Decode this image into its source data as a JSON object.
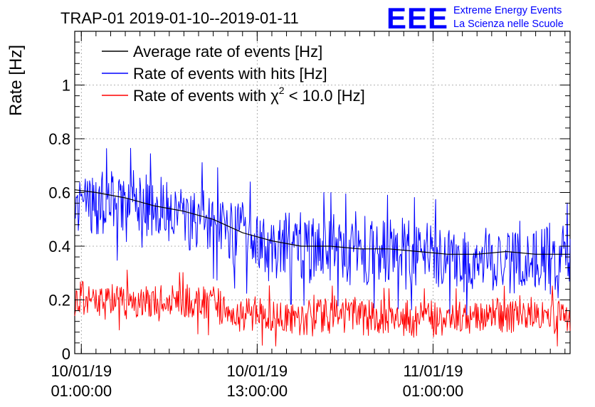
{
  "logo": {
    "mark": "EEE",
    "line1": "Extreme Energy Events",
    "line2": "La Scienza nelle Scuole",
    "color": "#0000ff"
  },
  "chart_data": {
    "type": "line",
    "title": "TRAP-01 2019-01-10--2019-01-11",
    "xlabel": "",
    "ylabel": "Rate [Hz]",
    "x_unit": "hours since 2019-01-10 00:00",
    "xlim": [
      0.55,
      34.35
    ],
    "ylim": [
      0,
      1.2
    ],
    "y_ticks": [
      0,
      0.2,
      0.4,
      0.6,
      0.8,
      1
    ],
    "y_tick_labels": [
      "0",
      "0.2",
      "0.4",
      "0.6",
      "0.8",
      "1"
    ],
    "x_ticks": [
      1,
      13,
      25
    ],
    "x_tick_labels": [
      [
        "10/01/19",
        "01:00:00"
      ],
      [
        "10/01/19",
        "13:00:00"
      ],
      [
        "11/01/19",
        "01:00:00"
      ]
    ],
    "grid": true,
    "legend_position": "top-left",
    "series": [
      {
        "name": "Average rate of events [Hz]",
        "color": "#000000",
        "x": [
          0.55,
          2,
          4,
          6,
          8,
          10,
          12,
          14,
          16,
          18,
          20,
          22,
          24,
          26,
          28,
          30,
          32,
          34.35
        ],
        "values": [
          0.61,
          0.6,
          0.58,
          0.55,
          0.53,
          0.5,
          0.45,
          0.42,
          0.4,
          0.4,
          0.39,
          0.39,
          0.38,
          0.37,
          0.37,
          0.38,
          0.37,
          0.37
        ]
      },
      {
        "name": "Rate of events with hits [Hz]",
        "color": "#0000ff",
        "x": [
          0.55,
          2,
          4,
          6,
          8,
          10,
          12,
          14,
          16,
          18,
          20,
          22,
          24,
          26,
          28,
          30,
          32,
          34.35
        ],
        "values": [
          0.55,
          0.55,
          0.56,
          0.53,
          0.52,
          0.49,
          0.44,
          0.4,
          0.39,
          0.39,
          0.38,
          0.38,
          0.37,
          0.36,
          0.35,
          0.37,
          0.36,
          0.35
        ],
        "spread": 0.15,
        "max": 0.79
      },
      {
        "name": "Rate of events with χ² < 10.0 [Hz]",
        "color": "#ff0000",
        "x": [
          0.55,
          2,
          4,
          6,
          8,
          10,
          12,
          14,
          16,
          18,
          20,
          22,
          24,
          26,
          28,
          30,
          32,
          34.35
        ],
        "values": [
          0.2,
          0.2,
          0.2,
          0.19,
          0.19,
          0.18,
          0.15,
          0.14,
          0.14,
          0.14,
          0.14,
          0.13,
          0.13,
          0.13,
          0.13,
          0.14,
          0.14,
          0.14
        ],
        "spread": 0.08,
        "max": 0.37
      }
    ],
    "legend": [
      {
        "label": "Average rate of events [Hz]",
        "color": "#000000"
      },
      {
        "label": "Rate of events with hits [Hz]",
        "color": "#0000ff"
      },
      {
        "label_prefix": "Rate of events with ",
        "label_symbol": "χ",
        "label_sup": "2",
        "label_suffix": " < 10.0 [Hz]",
        "color": "#ff0000"
      }
    ]
  }
}
